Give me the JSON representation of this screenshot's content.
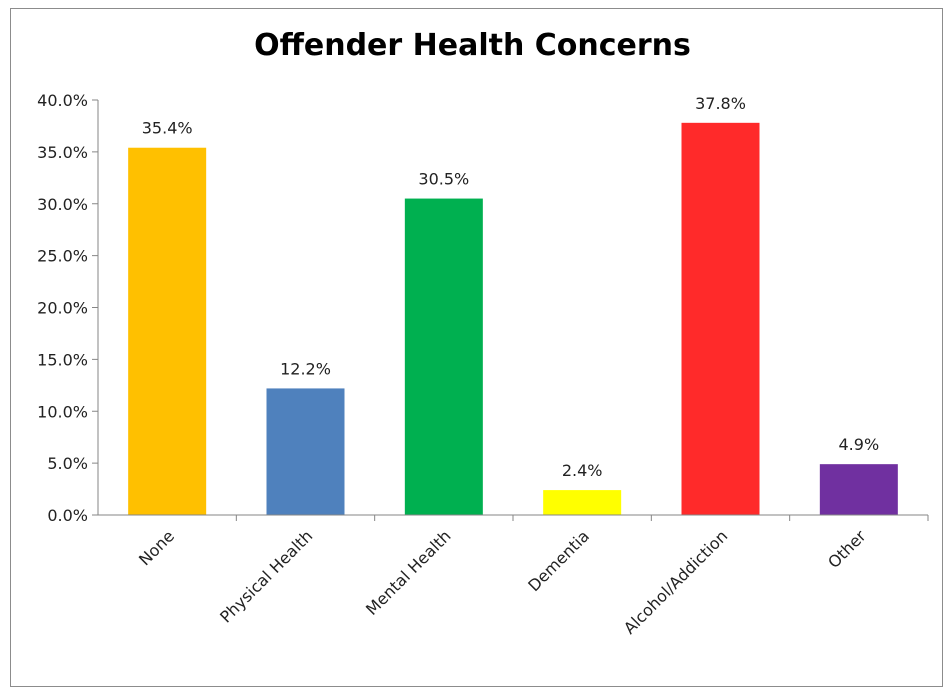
{
  "chart_data": {
    "type": "bar",
    "title": "Offender Health Concerns",
    "categories": [
      "None",
      "Physical Health",
      "Mental Health",
      "Dementia",
      "Alcohol/Addiction",
      "Other"
    ],
    "values": [
      35.4,
      12.2,
      30.5,
      2.4,
      37.8,
      4.9
    ],
    "value_labels": [
      "35.4%",
      "12.2%",
      "30.5%",
      "2.4%",
      "37.8%",
      "4.9%"
    ],
    "colors": [
      "#ffc000",
      "#4f81bd",
      "#00b050",
      "#ffff00",
      "#ff2a2a",
      "#7030a0"
    ],
    "ylim": [
      0,
      40
    ],
    "yticks": [
      0,
      5,
      10,
      15,
      20,
      25,
      30,
      35,
      40
    ],
    "ytick_labels": [
      "0.0%",
      "5.0%",
      "10.0%",
      "15.0%",
      "20.0%",
      "25.0%",
      "30.0%",
      "35.0%",
      "40.0%"
    ],
    "xlabel": "",
    "ylabel": "",
    "grid": false,
    "legend": "none"
  }
}
